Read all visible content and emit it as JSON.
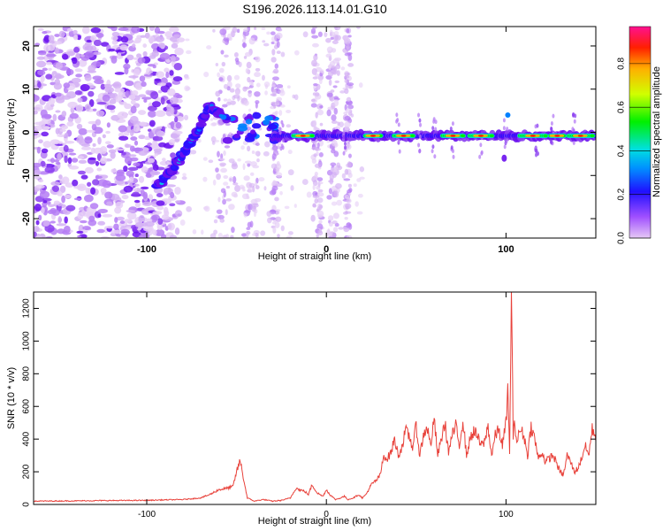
{
  "title": "S196.2026.113.14.01.G10",
  "colors": {
    "snr_line": "#e8413a",
    "axes": "#000000"
  },
  "chart_data": [
    {
      "type": "heatmap",
      "xlabel": "Height of straight line (km)",
      "ylabel": "Frequency (Hz)",
      "xlim": [
        -163,
        150
      ],
      "ylim": [
        -24.5,
        24.5
      ],
      "xticks": [
        -100,
        0,
        100
      ],
      "yticks": [
        -20,
        -10,
        0,
        10,
        20
      ],
      "colorbar": {
        "label": "Normalized spectral amplitude",
        "ticks": [
          "0.0",
          "0.2",
          "0.4",
          "0.6",
          "0.8"
        ],
        "range": [
          0,
          0.97
        ],
        "colormap": "rainbow"
      },
      "features": {
        "rising_track": [
          [
            -95,
            -13
          ],
          [
            -85,
            -8
          ],
          [
            -78,
            -4
          ],
          [
            -72,
            0
          ],
          [
            -65,
            6
          ],
          [
            -58,
            4
          ]
        ],
        "baseline_frequency": -0.8,
        "baseline_start": -30,
        "bright_segments": [
          [
            -18,
            -8
          ],
          [
            22,
            30
          ],
          [
            38,
            48
          ],
          [
            65,
            76
          ],
          [
            80,
            92
          ],
          [
            108,
            122
          ],
          [
            125,
            132
          ],
          [
            135,
            148
          ]
        ]
      }
    },
    {
      "type": "line",
      "xlabel": "Height of straight line (km)",
      "ylabel": "SNR (10 * v/v)",
      "xlim": [
        -163,
        150
      ],
      "ylim": [
        0,
        1300
      ],
      "xticks": [
        -100,
        0,
        100
      ],
      "yticks": [
        0,
        200,
        400,
        600,
        800,
        1000,
        1200
      ],
      "series": [
        {
          "name": "",
          "x": [
            -163,
            -140,
            -120,
            -100,
            -90,
            -80,
            -70,
            -65,
            -60,
            -55,
            -52,
            -50,
            -48,
            -46,
            -44,
            -42,
            -40,
            -38,
            -35,
            -30,
            -25,
            -20,
            -17,
            -15,
            -12,
            -10,
            -8,
            -5,
            -2,
            0,
            2,
            5,
            8,
            10,
            12,
            15,
            18,
            20,
            22,
            25,
            28,
            30,
            32,
            34,
            36,
            38,
            40,
            42,
            44,
            46,
            48,
            50,
            52,
            54,
            56,
            58,
            60,
            62,
            64,
            66,
            68,
            70,
            72,
            74,
            76,
            78,
            80,
            82,
            84,
            86,
            88,
            90,
            92,
            94,
            96,
            98,
            100,
            101,
            102,
            103,
            104,
            105,
            106,
            108,
            110,
            112,
            114,
            116,
            118,
            120,
            122,
            124,
            126,
            128,
            130,
            132,
            134,
            136,
            138,
            140,
            142,
            144,
            146,
            148,
            150
          ],
          "values": [
            20,
            22,
            24,
            25,
            28,
            30,
            40,
            60,
            90,
            100,
            110,
            200,
            270,
            150,
            40,
            30,
            20,
            25,
            30,
            20,
            25,
            40,
            100,
            90,
            80,
            60,
            120,
            70,
            50,
            90,
            60,
            30,
            40,
            50,
            30,
            40,
            60,
            40,
            60,
            120,
            150,
            180,
            300,
            280,
            320,
            400,
            300,
            350,
            450,
            420,
            350,
            480,
            300,
            420,
            480,
            360,
            520,
            300,
            400,
            500,
            320,
            420,
            480,
            360,
            520,
            300,
            400,
            450,
            420,
            360,
            380,
            480,
            300,
            420,
            460,
            360,
            500,
            700,
            300,
            1300,
            420,
            500,
            380,
            460,
            420,
            300,
            480,
            400,
            280,
            320,
            260,
            280,
            300,
            260,
            200,
            180,
            300,
            260,
            200,
            220,
            280,
            360,
            300,
            460,
            420
          ]
        }
      ]
    }
  ]
}
